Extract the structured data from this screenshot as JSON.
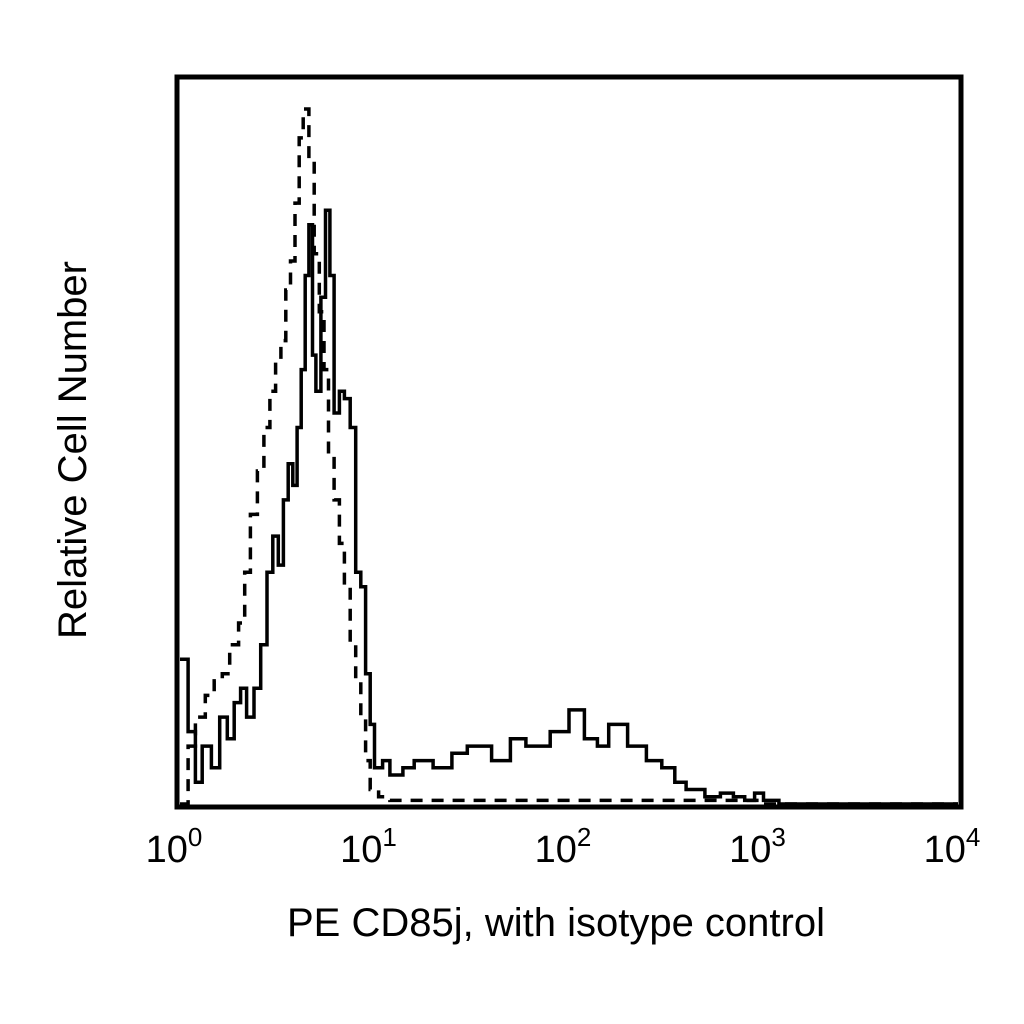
{
  "chart_data": {
    "type": "line",
    "title": "",
    "xlabel": "PE CD85j, with isotype control",
    "ylabel": "Relative Cell Number",
    "x_scale": "log",
    "xlim": [
      1,
      10000
    ],
    "ylim": [
      0,
      100
    ],
    "grid": false,
    "legend": "none",
    "x_ticks": [
      {
        "value": 1,
        "base": "10",
        "exp": "0"
      },
      {
        "value": 10,
        "base": "10",
        "exp": "1"
      },
      {
        "value": 100,
        "base": "10",
        "exp": "2"
      },
      {
        "value": 1000,
        "base": "10",
        "exp": "3"
      },
      {
        "value": 10000,
        "base": "10",
        "exp": "4"
      }
    ],
    "series": [
      {
        "style": "dashed",
        "color": "#000000",
        "x": [
          1.0,
          1.1,
          1.2,
          1.35,
          1.5,
          1.65,
          1.8,
          2.0,
          2.15,
          2.3,
          2.5,
          2.7,
          2.9,
          3.1,
          3.3,
          3.5,
          3.7,
          3.9,
          4.1,
          4.3,
          4.6,
          4.9,
          5.2,
          5.5,
          5.8,
          6.2,
          6.6,
          7.0,
          7.5,
          8.0,
          8.5,
          9.0,
          9.5,
          10.5,
          12,
          15,
          20,
          30,
          50,
          80,
          150,
          300,
          1000,
          10000
        ],
        "y": [
          0,
          8,
          12,
          15,
          17,
          18,
          22,
          25,
          32,
          40,
          46,
          52,
          57,
          61,
          64,
          71,
          75,
          83,
          92,
          96,
          89,
          76,
          68,
          60,
          48,
          42,
          36,
          30,
          22,
          17,
          12,
          6,
          2,
          1,
          0.5,
          0.5,
          0.5,
          0.5,
          0.5,
          0.5,
          0.5,
          0.5,
          0,
          0
        ]
      },
      {
        "style": "solid",
        "color": "#000000",
        "x": [
          1.0,
          1.1,
          1.2,
          1.3,
          1.45,
          1.6,
          1.75,
          1.9,
          2.05,
          2.2,
          2.4,
          2.6,
          2.8,
          3.0,
          3.2,
          3.4,
          3.6,
          3.8,
          4.0,
          4.2,
          4.4,
          4.6,
          4.8,
          5.0,
          5.3,
          5.6,
          5.9,
          6.2,
          6.6,
          7.0,
          7.5,
          8.0,
          8.5,
          9.0,
          9.5,
          10,
          11,
          12,
          14,
          16,
          20,
          25,
          30,
          40,
          50,
          60,
          80,
          100,
          120,
          140,
          160,
          200,
          250,
          300,
          350,
          400,
          500,
          600,
          700,
          800,
          900,
          1000,
          1200,
          10000
        ],
        "y": [
          20,
          10,
          3,
          8,
          5,
          12,
          9,
          14,
          16,
          12,
          16,
          22,
          32,
          37,
          33,
          42,
          47,
          44,
          52,
          60,
          73,
          80,
          62,
          57,
          70,
          82,
          73,
          54,
          57,
          56,
          52,
          32,
          30,
          18,
          11,
          5,
          6,
          4,
          5,
          6,
          5,
          7,
          8,
          6,
          9,
          8,
          10,
          13,
          9,
          8,
          11,
          8,
          6,
          5,
          3,
          2,
          1,
          1.5,
          1,
          0.5,
          1.5,
          0.5,
          0,
          0
        ]
      }
    ]
  }
}
